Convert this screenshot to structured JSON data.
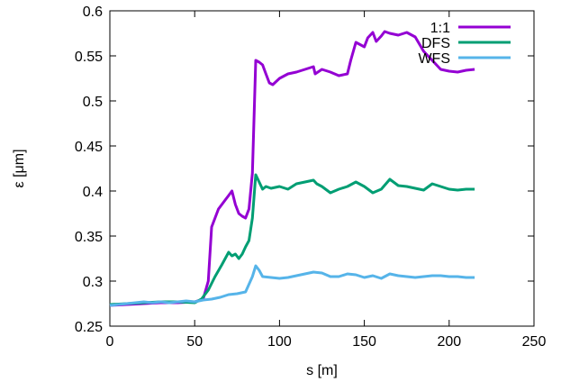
{
  "chart_data": {
    "type": "line",
    "title": "",
    "xlabel": "s [m]",
    "ylabel": "ε [μm]",
    "xlim": [
      0,
      250
    ],
    "ylim": [
      0.25,
      0.6
    ],
    "xticks": [
      0,
      50,
      100,
      150,
      200,
      250
    ],
    "xtick_labels": [
      "0",
      "50",
      "100",
      "150",
      "200",
      "250"
    ],
    "yticks": [
      0.25,
      0.3,
      0.35,
      0.4,
      0.45,
      0.5,
      0.55,
      0.6
    ],
    "ytick_labels": [
      "0.25",
      "0.3",
      "0.35",
      "0.4",
      "0.45",
      "0.5",
      "0.55",
      "0.6"
    ],
    "grid": false,
    "legend_position": "top-right",
    "series": [
      {
        "name": "1:1",
        "color": "#9400d3",
        "x": [
          0,
          10,
          20,
          30,
          40,
          50,
          55,
          58,
          60,
          62,
          64,
          68,
          70,
          72,
          74,
          76,
          78,
          80,
          82,
          84,
          86,
          88,
          90,
          92,
          94,
          96,
          100,
          105,
          110,
          115,
          120,
          121,
          125,
          130,
          135,
          140,
          142,
          145,
          150,
          152,
          155,
          157,
          160,
          162,
          165,
          170,
          175,
          180,
          185,
          190,
          195,
          200,
          205,
          210,
          215
        ],
        "y": [
          0.273,
          0.274,
          0.275,
          0.276,
          0.276,
          0.277,
          0.28,
          0.3,
          0.36,
          0.37,
          0.38,
          0.39,
          0.395,
          0.4,
          0.385,
          0.375,
          0.372,
          0.37,
          0.38,
          0.42,
          0.545,
          0.543,
          0.54,
          0.53,
          0.52,
          0.518,
          0.525,
          0.53,
          0.532,
          0.535,
          0.538,
          0.53,
          0.535,
          0.532,
          0.528,
          0.53,
          0.545,
          0.565,
          0.56,
          0.57,
          0.576,
          0.566,
          0.572,
          0.577,
          0.575,
          0.573,
          0.576,
          0.571,
          0.555,
          0.545,
          0.535,
          0.533,
          0.532,
          0.534,
          0.535
        ]
      },
      {
        "name": "DFS",
        "color": "#009e73",
        "x": [
          0,
          10,
          20,
          30,
          40,
          50,
          54,
          58,
          62,
          66,
          70,
          72,
          74,
          76,
          78,
          80,
          82,
          84,
          86,
          88,
          90,
          92,
          95,
          100,
          105,
          110,
          115,
          120,
          122,
          125,
          130,
          135,
          140,
          145,
          150,
          155,
          160,
          165,
          170,
          175,
          180,
          185,
          190,
          195,
          200,
          205,
          210,
          215
        ],
        "y": [
          0.274,
          0.275,
          0.276,
          0.277,
          0.277,
          0.276,
          0.28,
          0.29,
          0.305,
          0.318,
          0.332,
          0.328,
          0.33,
          0.325,
          0.33,
          0.338,
          0.345,
          0.37,
          0.418,
          0.41,
          0.402,
          0.405,
          0.403,
          0.405,
          0.402,
          0.408,
          0.41,
          0.412,
          0.408,
          0.405,
          0.398,
          0.402,
          0.405,
          0.41,
          0.405,
          0.398,
          0.402,
          0.413,
          0.406,
          0.405,
          0.403,
          0.401,
          0.408,
          0.405,
          0.402,
          0.401,
          0.402,
          0.402
        ]
      },
      {
        "name": "WFS",
        "color": "#56b4e9",
        "x": [
          0,
          5,
          10,
          15,
          20,
          25,
          30,
          35,
          40,
          45,
          50,
          55,
          60,
          65,
          70,
          75,
          80,
          84,
          86,
          88,
          90,
          95,
          100,
          105,
          110,
          115,
          120,
          125,
          130,
          135,
          140,
          145,
          150,
          155,
          160,
          165,
          170,
          175,
          180,
          185,
          190,
          195,
          200,
          205,
          210,
          215
        ],
        "y": [
          0.273,
          0.274,
          0.275,
          0.276,
          0.277,
          0.276,
          0.277,
          0.276,
          0.277,
          0.278,
          0.277,
          0.279,
          0.28,
          0.282,
          0.285,
          0.286,
          0.288,
          0.305,
          0.317,
          0.312,
          0.305,
          0.304,
          0.303,
          0.304,
          0.306,
          0.308,
          0.31,
          0.309,
          0.305,
          0.305,
          0.308,
          0.307,
          0.304,
          0.306,
          0.303,
          0.308,
          0.306,
          0.305,
          0.304,
          0.305,
          0.306,
          0.306,
          0.305,
          0.305,
          0.304,
          0.304
        ]
      }
    ]
  }
}
